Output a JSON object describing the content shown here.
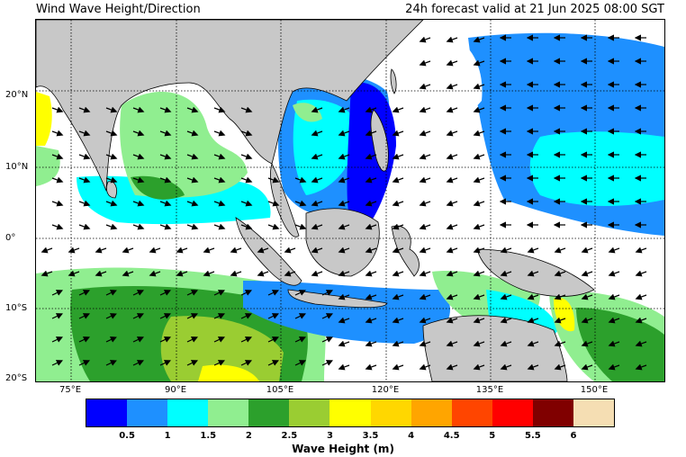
{
  "header": {
    "left_title": "Wind Wave Height/Direction",
    "right_title": "24h forecast valid at 21 Jun 2025 08:00 SGT"
  },
  "axes": {
    "lat_labels": [
      "20°N",
      "10°N",
      "0°",
      "10°S",
      "20°S"
    ],
    "lon_labels": [
      "75°E",
      "90°E",
      "105°E",
      "120°E",
      "135°E",
      "150°E"
    ]
  },
  "colorbar": {
    "title": "Wave Height (m)",
    "colors": [
      "#0000ff",
      "#1e90ff",
      "#00ffff",
      "#90ee90",
      "#2ca02c",
      "#9acd32",
      "#ffff00",
      "#ffd700",
      "#ffa500",
      "#ff4500",
      "#ff0000",
      "#800000",
      "#f5deb3"
    ],
    "ticks": [
      "0.5",
      "1",
      "1.5",
      "2",
      "2.5",
      "3",
      "3.5",
      "4",
      "4.5",
      "5",
      "5.5",
      "6"
    ]
  },
  "colors": {
    "land": "#c8c8c8",
    "grid": "#000000"
  }
}
